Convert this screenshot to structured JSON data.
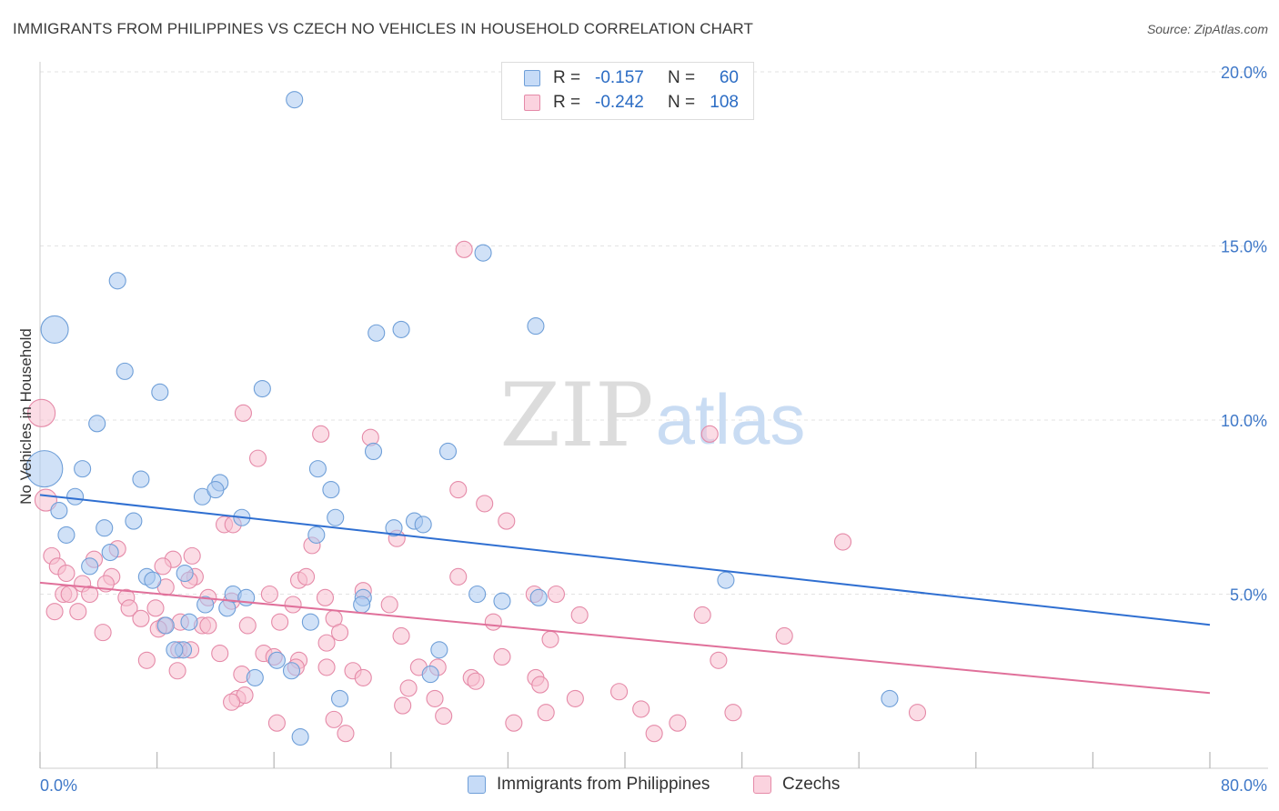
{
  "header": {
    "title": "IMMIGRANTS FROM PHILIPPINES VS CZECH NO VEHICLES IN HOUSEHOLD CORRELATION CHART",
    "source": "Source: ZipAtlas.com"
  },
  "watermark": {
    "zip": "ZIP",
    "atlas": "atlas"
  },
  "legend": {
    "rows": [
      {
        "r_label": "R =",
        "r_value": "-0.157",
        "n_label": "N =",
        "n_value": "60",
        "color": "#a9c8f0",
        "border": "#6f9fd8"
      },
      {
        "r_label": "R =",
        "r_value": "-0.242",
        "n_label": "N =",
        "n_value": "108",
        "color": "#f7bfd0",
        "border": "#e58aa8"
      }
    ]
  },
  "bottom_legend": {
    "items": [
      {
        "label": "Immigrants from Philippines",
        "color": "#c6dbf7",
        "border": "#6f9fd8"
      },
      {
        "label": "Czechs",
        "color": "#fbd3df",
        "border": "#e58aa8"
      }
    ]
  },
  "chart_data": {
    "type": "scatter",
    "title": "IMMIGRANTS FROM PHILIPPINES VS CZECH NO VEHICLES IN HOUSEHOLD CORRELATION CHART",
    "xlabel": "",
    "ylabel": "No Vehicles in Household",
    "xlim": [
      0,
      80
    ],
    "ylim": [
      0,
      20
    ],
    "x_tick_labels": [
      "0.0%",
      "80.0%"
    ],
    "y_tick_values": [
      5,
      10,
      15,
      20
    ],
    "y_tick_labels": [
      "5.0%",
      "10.0%",
      "15.0%",
      "20.0%"
    ],
    "grid": true,
    "legend_position": "top-center",
    "series": [
      {
        "name": "Immigrants from Philippines",
        "color": "#a9c8f0",
        "stroke": "#6f9fd8",
        "trend": {
          "x": [
            0,
            80
          ],
          "y": [
            7.85,
            4.12
          ],
          "color": "#2f6fd1"
        },
        "points": [
          [
            17.4,
            19.2
          ],
          [
            30.3,
            14.8
          ],
          [
            5.3,
            14.0
          ],
          [
            1.0,
            12.6,
            "lg"
          ],
          [
            23.0,
            12.5
          ],
          [
            24.7,
            12.6
          ],
          [
            33.9,
            12.7
          ],
          [
            5.8,
            11.4
          ],
          [
            8.2,
            10.8
          ],
          [
            15.2,
            10.9
          ],
          [
            3.9,
            9.9
          ],
          [
            27.9,
            9.1
          ],
          [
            22.8,
            9.1
          ],
          [
            0.3,
            8.6,
            "xl"
          ],
          [
            2.9,
            8.6
          ],
          [
            19.0,
            8.6
          ],
          [
            6.9,
            8.3
          ],
          [
            12.3,
            8.2
          ],
          [
            11.1,
            7.8
          ],
          [
            12.0,
            8.0
          ],
          [
            19.9,
            8.0
          ],
          [
            2.4,
            7.8
          ],
          [
            1.3,
            7.4
          ],
          [
            6.4,
            7.1
          ],
          [
            13.8,
            7.2
          ],
          [
            20.2,
            7.2
          ],
          [
            25.6,
            7.1
          ],
          [
            26.2,
            7.0
          ],
          [
            24.2,
            6.9
          ],
          [
            4.4,
            6.9
          ],
          [
            1.8,
            6.7
          ],
          [
            18.9,
            6.7
          ],
          [
            4.8,
            6.2
          ],
          [
            3.4,
            5.8
          ],
          [
            7.3,
            5.5
          ],
          [
            9.9,
            5.6
          ],
          [
            7.7,
            5.4
          ],
          [
            46.9,
            5.4
          ],
          [
            13.2,
            5.0
          ],
          [
            14.1,
            4.9
          ],
          [
            29.9,
            5.0
          ],
          [
            31.6,
            4.8
          ],
          [
            34.1,
            4.9
          ],
          [
            22.1,
            4.9
          ],
          [
            11.3,
            4.7
          ],
          [
            12.8,
            4.6
          ],
          [
            22.0,
            4.7
          ],
          [
            10.2,
            4.2
          ],
          [
            8.6,
            4.1
          ],
          [
            18.5,
            4.2
          ],
          [
            9.8,
            3.4
          ],
          [
            9.2,
            3.4
          ],
          [
            27.3,
            3.4
          ],
          [
            16.2,
            3.1
          ],
          [
            17.2,
            2.8
          ],
          [
            26.7,
            2.7
          ],
          [
            14.7,
            2.6
          ],
          [
            20.5,
            2.0
          ],
          [
            58.1,
            2.0
          ],
          [
            17.8,
            0.9
          ]
        ]
      },
      {
        "name": "Czechs",
        "color": "#f7bfd0",
        "stroke": "#e58aa8",
        "trend": {
          "x": [
            0,
            80
          ],
          "y": [
            5.33,
            2.16
          ],
          "color": "#e0709a"
        },
        "points": [
          [
            0.1,
            10.2,
            "lg"
          ],
          [
            29.0,
            14.9
          ],
          [
            13.9,
            10.2
          ],
          [
            19.2,
            9.6
          ],
          [
            22.6,
            9.5
          ],
          [
            45.8,
            9.6
          ],
          [
            14.9,
            8.9
          ],
          [
            28.6,
            8.0
          ],
          [
            0.4,
            7.7,
            "md"
          ],
          [
            30.4,
            7.6
          ],
          [
            31.9,
            7.1
          ],
          [
            12.6,
            7.0
          ],
          [
            13.2,
            7.0
          ],
          [
            54.9,
            6.5
          ],
          [
            24.4,
            6.6
          ],
          [
            18.6,
            6.4
          ],
          [
            5.3,
            6.3
          ],
          [
            0.8,
            6.1
          ],
          [
            10.4,
            6.1
          ],
          [
            9.1,
            6.0
          ],
          [
            3.7,
            6.0
          ],
          [
            8.4,
            5.8
          ],
          [
            1.2,
            5.8
          ],
          [
            1.8,
            5.6
          ],
          [
            4.9,
            5.5
          ],
          [
            10.6,
            5.5
          ],
          [
            17.7,
            5.4
          ],
          [
            28.6,
            5.5
          ],
          [
            18.2,
            5.5
          ],
          [
            10.2,
            5.4
          ],
          [
            4.5,
            5.3
          ],
          [
            8.6,
            5.2
          ],
          [
            2.9,
            5.3
          ],
          [
            1.6,
            5.0
          ],
          [
            2.0,
            5.0
          ],
          [
            3.4,
            5.0
          ],
          [
            15.7,
            5.0
          ],
          [
            19.5,
            4.9
          ],
          [
            22.1,
            5.1
          ],
          [
            33.8,
            5.0
          ],
          [
            35.3,
            5.0
          ],
          [
            5.9,
            4.9
          ],
          [
            11.5,
            4.9
          ],
          [
            13.1,
            4.8
          ],
          [
            17.3,
            4.7
          ],
          [
            23.9,
            4.7
          ],
          [
            6.1,
            4.6
          ],
          [
            7.9,
            4.6
          ],
          [
            2.6,
            4.5
          ],
          [
            1.0,
            4.5
          ],
          [
            36.9,
            4.4
          ],
          [
            45.3,
            4.4
          ],
          [
            6.9,
            4.3
          ],
          [
            20.1,
            4.3
          ],
          [
            31.0,
            4.2
          ],
          [
            8.5,
            4.1
          ],
          [
            14.2,
            4.1
          ],
          [
            16.4,
            4.2
          ],
          [
            11.1,
            4.1
          ],
          [
            9.6,
            4.2
          ],
          [
            4.3,
            3.9
          ],
          [
            8.1,
            4.0
          ],
          [
            11.5,
            4.1
          ],
          [
            20.5,
            3.9
          ],
          [
            50.9,
            3.8
          ],
          [
            24.7,
            3.8
          ],
          [
            19.6,
            3.6
          ],
          [
            9.5,
            3.4
          ],
          [
            15.3,
            3.3
          ],
          [
            16.0,
            3.2
          ],
          [
            12.3,
            3.3
          ],
          [
            31.6,
            3.2
          ],
          [
            10.3,
            3.4
          ],
          [
            17.7,
            3.1
          ],
          [
            46.4,
            3.1
          ],
          [
            27.2,
            2.9
          ],
          [
            17.5,
            2.9
          ],
          [
            19.6,
            2.9
          ],
          [
            25.9,
            2.9
          ],
          [
            9.4,
            2.8
          ],
          [
            21.4,
            2.8
          ],
          [
            22.1,
            2.6
          ],
          [
            29.5,
            2.6
          ],
          [
            29.8,
            2.5
          ],
          [
            33.9,
            2.6
          ],
          [
            34.2,
            2.4
          ],
          [
            25.2,
            2.3
          ],
          [
            39.6,
            2.2
          ],
          [
            13.5,
            2.0
          ],
          [
            14.0,
            2.1
          ],
          [
            27.0,
            2.0
          ],
          [
            13.1,
            1.9
          ],
          [
            24.8,
            1.8
          ],
          [
            34.6,
            1.6
          ],
          [
            41.1,
            1.7
          ],
          [
            47.4,
            1.6
          ],
          [
            60.0,
            1.6
          ],
          [
            27.6,
            1.5
          ],
          [
            20.1,
            1.4
          ],
          [
            32.4,
            1.3
          ],
          [
            43.6,
            1.3
          ],
          [
            16.2,
            1.3
          ],
          [
            42.0,
            1.0
          ],
          [
            20.9,
            1.0
          ],
          [
            36.6,
            2.0
          ],
          [
            13.8,
            2.7
          ],
          [
            7.3,
            3.1
          ],
          [
            34.9,
            3.7
          ]
        ]
      }
    ]
  }
}
